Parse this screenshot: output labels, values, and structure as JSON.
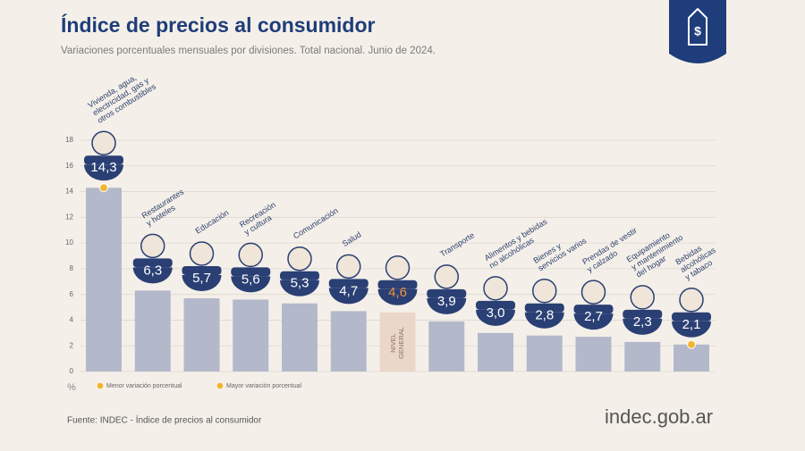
{
  "chart_data": {
    "type": "bar",
    "title": "Índice de precios al consumidor",
    "subtitle": "Variaciones porcentuales mensuales por divisiones. Total nacional. Junio de 2024.",
    "categories": [
      [
        "Vivienda, agua,",
        "electricidad, gas y",
        "otros combustibles"
      ],
      [
        "Restaurantes",
        "y hoteles"
      ],
      [
        "Educación"
      ],
      [
        "Recreación",
        "y cultura"
      ],
      [
        "Comunicación"
      ],
      [
        "Salud"
      ],
      [
        "NIVEL",
        "GENERAL"
      ],
      [
        "Transporte"
      ],
      [
        "Alimentos y bebidas",
        "no alcohólicas"
      ],
      [
        "Bienes y",
        "servicios varios"
      ],
      [
        "Prendas de vestir",
        "y calzado"
      ],
      [
        "Equipamiento",
        "y mantenimiento",
        "del hogar"
      ],
      [
        "Bebidas",
        "alcohólicas",
        "y tabaco"
      ]
    ],
    "values": [
      14.3,
      6.3,
      5.7,
      5.6,
      5.3,
      4.7,
      4.6,
      3.9,
      3.0,
      2.8,
      2.7,
      2.3,
      2.1
    ],
    "value_labels": [
      "14,3",
      "6,3",
      "5,7",
      "5,6",
      "5,3",
      "4,7",
      "4,6",
      "3,9",
      "3,0",
      "2,8",
      "2,7",
      "2,3",
      "2,1"
    ],
    "colors": [
      "#b4b8cb",
      "#b4b8cb",
      "#b4b8cb",
      "#b4b8cb",
      "#b4b8cb",
      "#b4b8cb",
      "#ead7c9",
      "#b4b8cb",
      "#b4b8cb",
      "#b4b8cb",
      "#b4b8cb",
      "#b4b8cb",
      "#b4b8cb"
    ],
    "value_label_colors": [
      "#ffffff",
      "#ffffff",
      "#ffffff",
      "#ffffff",
      "#ffffff",
      "#ffffff",
      "#f0943a",
      "#ffffff",
      "#ffffff",
      "#ffffff",
      "#ffffff",
      "#ffffff",
      "#ffffff"
    ],
    "ylim": [
      0,
      18
    ],
    "yticks": [
      0,
      2,
      4,
      6,
      8,
      10,
      12,
      14,
      16,
      18
    ],
    "y_label": "%",
    "grid": true,
    "legend": [
      {
        "label": "Menor variación porcentual",
        "color": "#f2b634"
      },
      {
        "label": "Mayor variación porcentual",
        "color": "#f2b634"
      }
    ],
    "source": "Fuente: INDEC - Índice de precios al consumidor",
    "brand": "indec.gob.ar"
  }
}
